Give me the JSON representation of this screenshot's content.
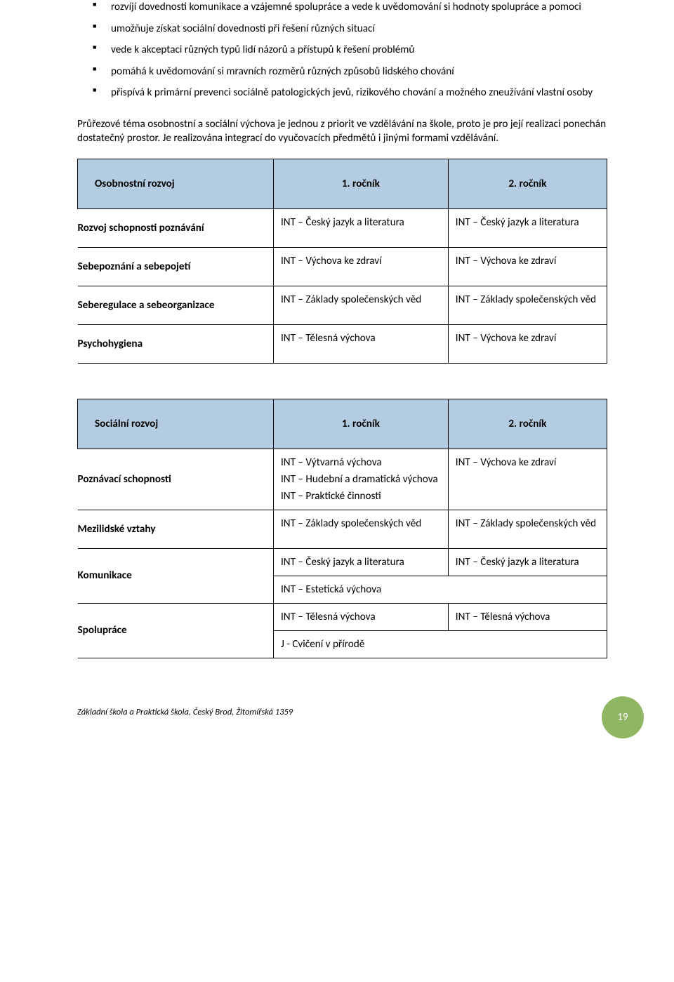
{
  "colors": {
    "page_bg": "#ffffff",
    "text": "#000000",
    "table_header_bg": "#b4cce2",
    "table_border": "#000000",
    "badge_bg": "#8eb663",
    "badge_text": "#ffffff"
  },
  "typography": {
    "body_family": "Calibri, Arial, sans-serif",
    "body_size_pt": 11,
    "footer_size_pt": 9,
    "footer_italic": true
  },
  "bullets": [
    "rozvíjí dovednosti komunikace a vzájemné spolupráce a vede k uvědomování si hodnoty spolupráce a pomoci",
    "umožňuje získat sociální dovednosti při řešení různých situací",
    "vede k akceptaci různých typů lidí názorů a přístupů k řešení problémů",
    "pomáhá k uvědomování si mravních rozměrů různých způsobů lidského chování",
    "přispívá k primární prevenci sociálně patologických jevů, rizikového chování a možného zneužívání vlastní osoby"
  ],
  "paragraph": "Průřezové téma osobnostní a sociální výchova je jednou z priorit ve vzdělávání na škole, proto je pro její realizaci ponechán dostatečný prostor. Je realizována integrací do vyučovacích předmětů i jinými formami vzdělávání.",
  "table1": {
    "headers": [
      "Osobnostní rozvoj",
      "1. ročník",
      "2. ročník"
    ],
    "rows": [
      {
        "label": "Rozvoj schopnosti poznávání",
        "c1": "INT – Český jazyk a literatura",
        "c2": "INT – Český jazyk a literatura"
      },
      {
        "label": "Sebepoznání a sebepojetí",
        "c1": "INT – Výchova ke zdraví",
        "c2": "INT – Výchova ke zdraví"
      },
      {
        "label": "Seberegulace a sebeorganizace",
        "c1": "INT – Základy společenských věd",
        "c2": "INT – Základy společenských věd"
      },
      {
        "label": "Psychohygiena",
        "c1": "INT – Tělesná výchova",
        "c2": "INT – Výchova ke zdraví"
      }
    ]
  },
  "table2": {
    "headers": [
      "Sociální rozvoj",
      "1. ročník",
      "2. ročník"
    ],
    "rows": {
      "poznavaci": {
        "label": "Poznávací schopnosti",
        "c1_lines": [
          "INT – Výtvarná výchova",
          "INT – Hudební a dramatická výchova",
          "INT – Praktické činnosti"
        ],
        "c2": "INT – Výchova ke zdraví"
      },
      "mezilid": {
        "label": "Mezilidské vztahy",
        "c1": "INT – Základy společenských věd",
        "c2": "INT – Základy společenských věd"
      },
      "komunikace": {
        "label": "Komunikace",
        "c1": "INT – Český jazyk a literatura",
        "c2": "INT – Český jazyk a literatura",
        "span_note": "INT – Estetická výchova"
      },
      "spoluprace": {
        "label": "Spolupráce",
        "c1": "INT – Tělesná výchova",
        "c2": "INT – Tělesná výchova",
        "span_note": "J - Cvičení v přírodě"
      }
    }
  },
  "footer": {
    "text": "Základní škola a Praktická škola, Český Brod, Žitomířská 1359",
    "page_number": "19"
  }
}
